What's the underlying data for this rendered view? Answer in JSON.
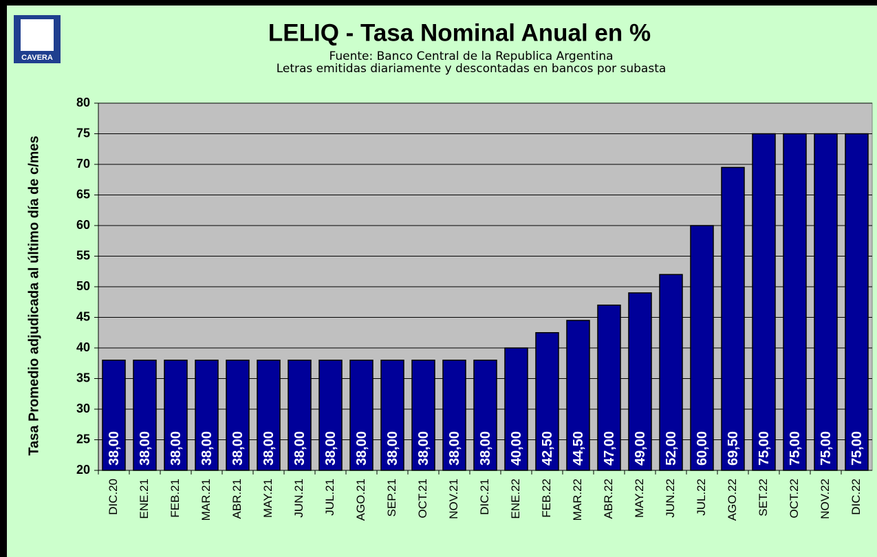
{
  "chart_data": {
    "type": "bar",
    "logo": "CAVERA",
    "title": "LELIQ - Tasa Nominal Anual en %",
    "subtitle": [
      "Fuente: Banco Central de la Republica Argentina",
      "Letras emitidas diariamente y descontadas en bancos por subasta"
    ],
    "y_label": "Tasa Promedio adjudicada al último día de c/mes",
    "categories": [
      "DIC.20",
      "ENE.21",
      "FEB.21",
      "MAR.21",
      "ABR.21",
      "MAY.21",
      "JUN.21",
      "JUL.21",
      "AGO.21",
      "SEP.21",
      "OCT.21",
      "NOV.21",
      "DIC.21",
      "ENE.22",
      "FEB.22",
      "MAR.22",
      "ABR.22",
      "MAY.22",
      "JUN.22",
      "JUL.22",
      "AGO.22",
      "SET.22",
      "OCT.22",
      "NOV.22",
      "DIC.22"
    ],
    "values": [
      38,
      38,
      38,
      38,
      38,
      38,
      38,
      38,
      38,
      38,
      38,
      38,
      38,
      40,
      42.5,
      44.5,
      47,
      49,
      52,
      60,
      69.5,
      75,
      75,
      75,
      75
    ],
    "value_labels": [
      "38,00",
      "38,00",
      "38,00",
      "38,00",
      "38,00",
      "38,00",
      "38,00",
      "38,00",
      "38,00",
      "38,00",
      "38,00",
      "38,00",
      "38,00",
      "40,00",
      "42,50",
      "44,50",
      "47,00",
      "49,00",
      "52,00",
      "60,00",
      "69,50",
      "75,00",
      "75,00",
      "75,00",
      "75,00"
    ],
    "color": "#000099",
    "ylim": [
      20,
      80
    ],
    "yticks": [
      20,
      25,
      30,
      35,
      40,
      45,
      50,
      55,
      60,
      65,
      70,
      75,
      80
    ],
    "grid": true
  }
}
